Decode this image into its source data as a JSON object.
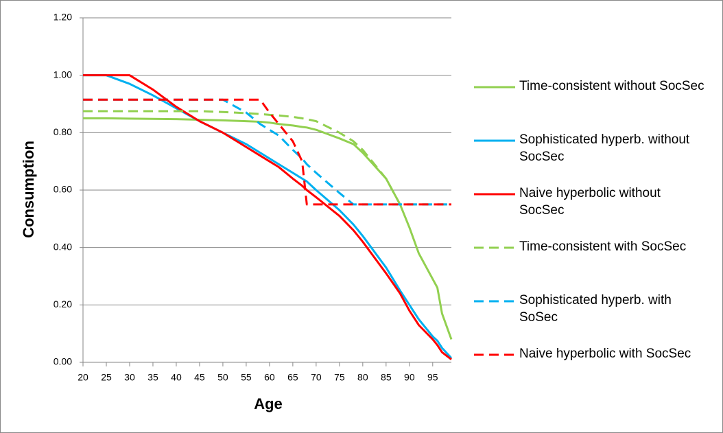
{
  "chart_data": {
    "type": "line",
    "x_label": "Age",
    "y_label": "Consumption",
    "x": [
      20,
      25,
      30,
      35,
      40,
      45,
      50,
      55,
      58,
      60,
      62,
      65,
      67,
      68,
      70,
      75,
      78,
      80,
      85,
      88,
      90,
      92,
      95,
      96,
      97,
      99
    ],
    "xlim": [
      20,
      99
    ],
    "xticks": [
      20,
      25,
      30,
      35,
      40,
      45,
      50,
      55,
      60,
      65,
      70,
      75,
      80,
      85,
      90,
      95
    ],
    "ylim": [
      0,
      1.2
    ],
    "yticks": [
      {
        "value": 0,
        "label": "0.00"
      },
      {
        "value": 0.2,
        "label": "0.20"
      },
      {
        "value": 0.4,
        "label": "0.40"
      },
      {
        "value": 0.6,
        "label": "0.60"
      },
      {
        "value": 0.8,
        "label": "0.80"
      },
      {
        "value": 1,
        "label": "1.00"
      },
      {
        "value": 1.2,
        "label": "1.20"
      }
    ],
    "grid": true,
    "series": [
      {
        "name": "Time-consistent without SocSec",
        "color": "#92d050",
        "style": "solid",
        "values": [
          0.85,
          0.85,
          0.849,
          0.848,
          0.847,
          0.845,
          0.843,
          0.84,
          0.838,
          0.835,
          0.83,
          0.825,
          0.82,
          0.818,
          0.81,
          0.78,
          0.76,
          0.73,
          0.64,
          0.55,
          0.47,
          0.38,
          0.29,
          0.26,
          0.17,
          0.08
        ]
      },
      {
        "name": "Sophisticated hyperb. without SocSec",
        "color": "#00b0f0",
        "style": "solid",
        "values": [
          1,
          1,
          0.97,
          0.93,
          0.885,
          0.84,
          0.8,
          0.76,
          0.73,
          0.71,
          0.69,
          0.66,
          0.64,
          0.63,
          0.6,
          0.53,
          0.48,
          0.44,
          0.33,
          0.25,
          0.2,
          0.15,
          0.09,
          0.075,
          0.05,
          0.015
        ]
      },
      {
        "name": "Naive hyperbolic without SocSec",
        "color": "#ff0000",
        "style": "solid",
        "values": [
          1,
          1,
          1,
          0.95,
          0.89,
          0.84,
          0.8,
          0.75,
          0.72,
          0.7,
          0.68,
          0.64,
          0.615,
          0.6,
          0.575,
          0.51,
          0.46,
          0.42,
          0.31,
          0.24,
          0.18,
          0.13,
          0.08,
          0.06,
          0.035,
          0.01
        ]
      },
      {
        "name": "Time-consistent with SocSec",
        "color": "#92d050",
        "style": "dashed",
        "values": [
          0.875,
          0.875,
          0.875,
          0.875,
          0.875,
          0.875,
          0.872,
          0.868,
          0.865,
          0.862,
          0.86,
          0.855,
          0.85,
          0.847,
          0.84,
          0.8,
          0.77,
          0.74,
          0.64,
          0.55,
          0.55,
          0.55,
          0.55,
          0.55,
          0.55,
          0.55
        ]
      },
      {
        "name": "Sophisticated hyperb. with SoSec",
        "color": "#00b0f0",
        "style": "dashed",
        "values": [
          0.915,
          0.915,
          0.915,
          0.915,
          0.915,
          0.915,
          0.915,
          0.87,
          0.83,
          0.81,
          0.79,
          0.74,
          0.71,
          0.69,
          0.66,
          0.59,
          0.55,
          0.55,
          0.55,
          0.55,
          0.55,
          0.55,
          0.55,
          0.55,
          0.55,
          0.55
        ]
      },
      {
        "name": "Naive hyperbolic with SocSec",
        "color": "#ff0000",
        "style": "dashed",
        "values": [
          0.915,
          0.915,
          0.915,
          0.915,
          0.915,
          0.915,
          0.915,
          0.915,
          0.915,
          0.87,
          0.83,
          0.77,
          0.7,
          0.55,
          0.55,
          0.55,
          0.55,
          0.55,
          0.55,
          0.55,
          0.55,
          0.55,
          0.55,
          0.55,
          0.55,
          0.55
        ]
      }
    ]
  }
}
